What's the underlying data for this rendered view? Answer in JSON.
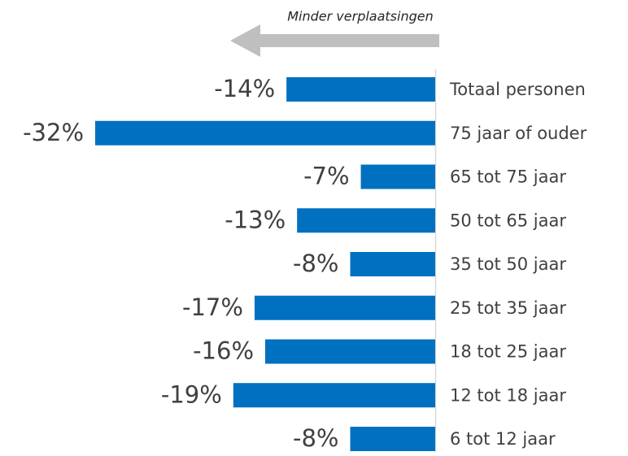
{
  "chart_data": {
    "type": "bar",
    "orientation": "horizontal",
    "annotation": "Minder verplaatsingen",
    "categories": [
      "Totaal personen",
      "75 jaar of ouder",
      "65 tot 75 jaar",
      "50 tot 65 jaar",
      "35 tot 50 jaar",
      "25 tot 35 jaar",
      "18 tot 25 jaar",
      "12 tot 18 jaar",
      "6 tot 12 jaar"
    ],
    "values": [
      -14,
      -32,
      -7,
      -13,
      -8,
      -17,
      -16,
      -19,
      -8
    ],
    "value_labels": [
      "-14%",
      "-32%",
      "-7%",
      "-13%",
      "-8%",
      "-17%",
      "-16%",
      "-19%",
      "-8%"
    ],
    "color": "#0070c0"
  }
}
